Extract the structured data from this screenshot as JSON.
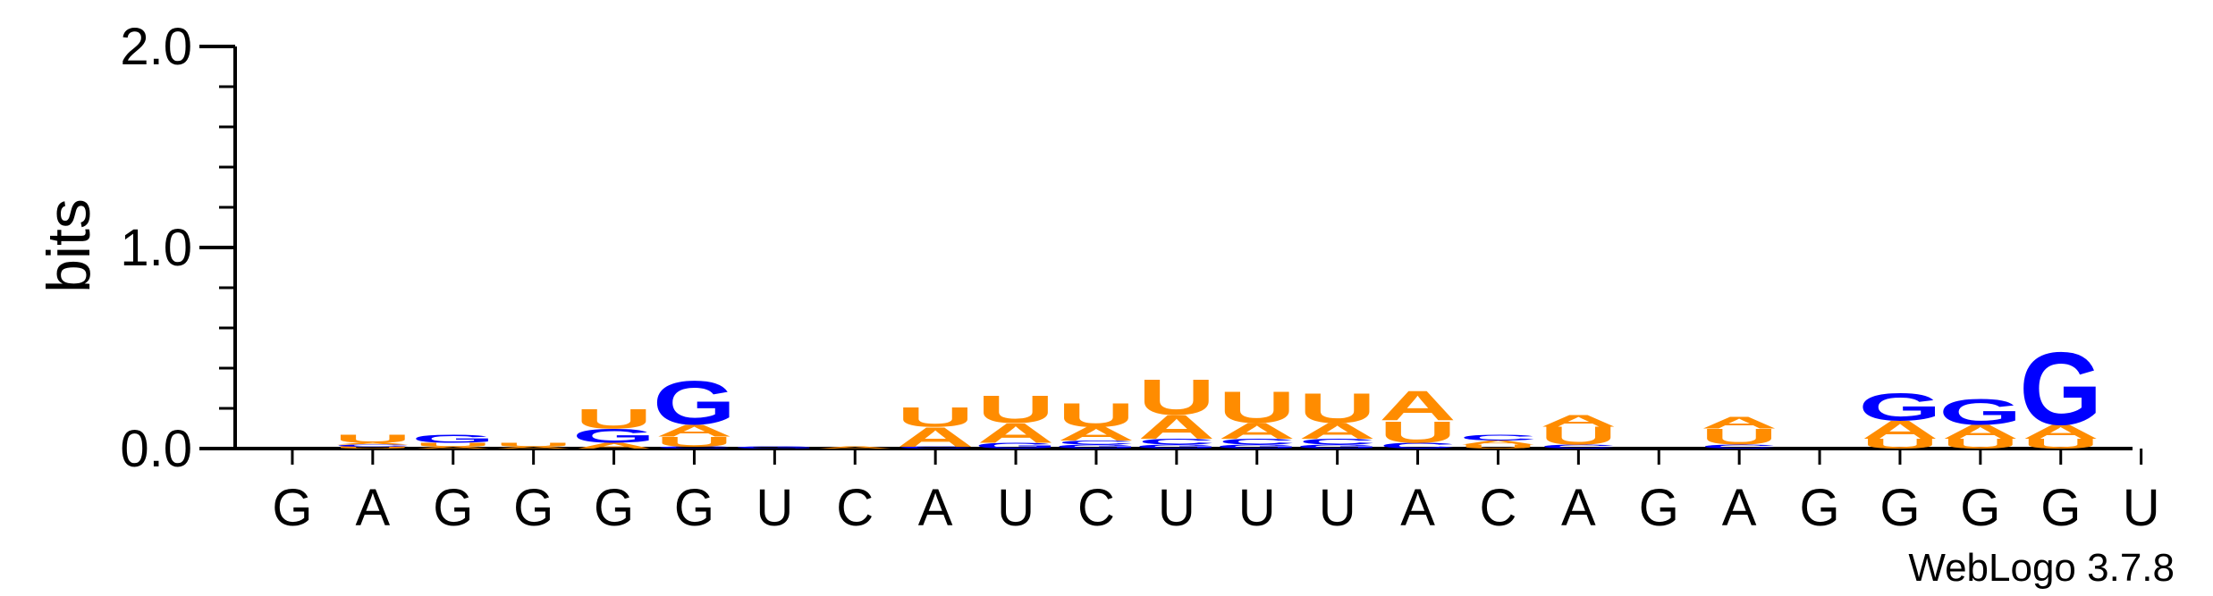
{
  "chart_data": {
    "type": "sequence_logo",
    "ylabel": "bits",
    "ylim": [
      0,
      2.0
    ],
    "yticks": [
      "0.0",
      "1.0",
      "2.0"
    ],
    "x_labels": [
      "G",
      "A",
      "G",
      "G",
      "G",
      "G",
      "U",
      "C",
      "A",
      "U",
      "C",
      "U",
      "U",
      "U",
      "A",
      "C",
      "A",
      "G",
      "A",
      "G",
      "G",
      "G",
      "G",
      "U"
    ],
    "colors": {
      "A": "#ff8c00",
      "U": "#ff8c00",
      "G": "#0000ff",
      "C": "#0000ff"
    },
    "footer": "WebLogo 3.7.8",
    "positions": [
      {
        "x": "G",
        "stack": []
      },
      {
        "x": "A",
        "stack": [
          {
            "l": "U",
            "h": 0.01
          },
          {
            "l": "C",
            "h": 0.01
          },
          {
            "l": "A",
            "h": 0.01
          },
          {
            "l": "U",
            "h": 0.04
          }
        ]
      },
      {
        "x": "G",
        "stack": [
          {
            "l": "A",
            "h": 0.01
          },
          {
            "l": "U",
            "h": 0.02
          },
          {
            "l": "G",
            "h": 0.04
          }
        ]
      },
      {
        "x": "G",
        "stack": [
          {
            "l": "A",
            "h": 0.01
          },
          {
            "l": "U",
            "h": 0.02
          }
        ]
      },
      {
        "x": "G",
        "stack": [
          {
            "l": "A",
            "h": 0.03
          },
          {
            "l": "G",
            "h": 0.07
          },
          {
            "l": "U",
            "h": 0.1
          }
        ]
      },
      {
        "x": "G",
        "stack": [
          {
            "l": "C",
            "h": 0.01
          },
          {
            "l": "U",
            "h": 0.05
          },
          {
            "l": "A",
            "h": 0.06
          },
          {
            "l": "G",
            "h": 0.22
          }
        ]
      },
      {
        "x": "U",
        "stack": [
          {
            "l": "G",
            "h": 0.01
          }
        ]
      },
      {
        "x": "C",
        "stack": [
          {
            "l": "A",
            "h": 0.01
          }
        ]
      },
      {
        "x": "A",
        "stack": [
          {
            "l": "C",
            "h": 0.01
          },
          {
            "l": "A",
            "h": 0.1
          },
          {
            "l": "U",
            "h": 0.1
          }
        ]
      },
      {
        "x": "U",
        "stack": [
          {
            "l": "G",
            "h": 0.03
          },
          {
            "l": "A",
            "h": 0.1
          },
          {
            "l": "U",
            "h": 0.14
          }
        ]
      },
      {
        "x": "C",
        "stack": [
          {
            "l": "G",
            "h": 0.02
          },
          {
            "l": "C",
            "h": 0.02
          },
          {
            "l": "A",
            "h": 0.07
          },
          {
            "l": "U",
            "h": 0.12
          }
        ]
      },
      {
        "x": "U",
        "stack": [
          {
            "l": "G",
            "h": 0.02
          },
          {
            "l": "C",
            "h": 0.03
          },
          {
            "l": "A",
            "h": 0.12
          },
          {
            "l": "U",
            "h": 0.18
          }
        ]
      },
      {
        "x": "U",
        "stack": [
          {
            "l": "G",
            "h": 0.02
          },
          {
            "l": "C",
            "h": 0.03
          },
          {
            "l": "A",
            "h": 0.08
          },
          {
            "l": "U",
            "h": 0.16
          }
        ]
      },
      {
        "x": "U",
        "stack": [
          {
            "l": "G",
            "h": 0.02
          },
          {
            "l": "C",
            "h": 0.03
          },
          {
            "l": "A",
            "h": 0.08
          },
          {
            "l": "U",
            "h": 0.15
          }
        ]
      },
      {
        "x": "A",
        "stack": [
          {
            "l": "C",
            "h": 0.03
          },
          {
            "l": "U",
            "h": 0.11
          },
          {
            "l": "A",
            "h": 0.15
          }
        ]
      },
      {
        "x": "C",
        "stack": [
          {
            "l": "U",
            "h": 0.02
          },
          {
            "l": "A",
            "h": 0.02
          },
          {
            "l": "C",
            "h": 0.03
          }
        ]
      },
      {
        "x": "A",
        "stack": [
          {
            "l": "C",
            "h": 0.02
          },
          {
            "l": "U",
            "h": 0.09
          },
          {
            "l": "A",
            "h": 0.06
          }
        ]
      },
      {
        "x": "G",
        "stack": []
      },
      {
        "x": "A",
        "stack": [
          {
            "l": "C",
            "h": 0.02
          },
          {
            "l": "U",
            "h": 0.08
          },
          {
            "l": "A",
            "h": 0.06
          }
        ]
      },
      {
        "x": "G",
        "stack": []
      },
      {
        "x": "G",
        "stack": [
          {
            "l": "U",
            "h": 0.05
          },
          {
            "l": "A",
            "h": 0.09
          },
          {
            "l": "G",
            "h": 0.14
          }
        ]
      },
      {
        "x": "G",
        "stack": [
          {
            "l": "U",
            "h": 0.05
          },
          {
            "l": "A",
            "h": 0.07
          },
          {
            "l": "G",
            "h": 0.13
          }
        ]
      },
      {
        "x": "G",
        "stack": [
          {
            "l": "U",
            "h": 0.05
          },
          {
            "l": "A",
            "h": 0.07
          },
          {
            "l": "G",
            "h": 0.37
          }
        ]
      },
      {
        "x": "U",
        "stack": []
      }
    ]
  }
}
